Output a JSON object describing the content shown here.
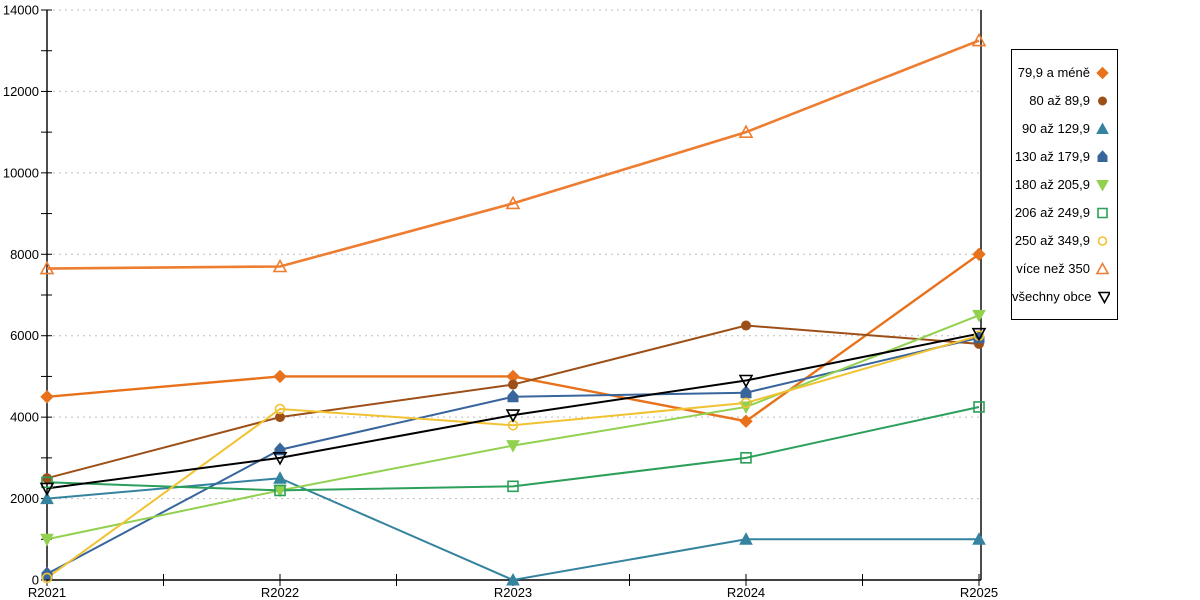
{
  "chart_data": {
    "type": "line",
    "title": "",
    "xlabel": "",
    "ylabel": "",
    "categories": [
      "R2021",
      "R2022",
      "R2023",
      "R2024",
      "R2025"
    ],
    "ylim": [
      0,
      14000
    ],
    "y_major_step": 2000,
    "y_minor_step": 1000,
    "y_tick_labels": [
      "0",
      "2000",
      "4000",
      "6000",
      "8000",
      "10000",
      "12000",
      "14000"
    ],
    "grid": "horizontal-dashed",
    "legend_position": "right-box",
    "series": [
      {
        "name": "79,9 a méně",
        "color": "#e8721c",
        "marker": "diamond",
        "marker_style": "filled",
        "line_width": 2.4,
        "values": [
          4500,
          5000,
          5000,
          3900,
          8000
        ]
      },
      {
        "name": "80 až 89,9",
        "color": "#9c5018",
        "marker": "circle",
        "marker_style": "filled",
        "line_width": 2,
        "values": [
          2500,
          4000,
          4800,
          6250,
          5800
        ]
      },
      {
        "name": "90 až 129,9",
        "color": "#35839e",
        "marker": "triangle-up",
        "marker_style": "filled",
        "line_width": 2,
        "values": [
          2000,
          2500,
          0,
          1000,
          1000
        ]
      },
      {
        "name": "130 až 179,9",
        "color": "#38659b",
        "marker": "pentagon",
        "marker_style": "filled",
        "line_width": 2,
        "values": [
          150,
          3200,
          4500,
          4600,
          5950
        ]
      },
      {
        "name": "180 až 205,9",
        "color": "#92d050",
        "marker": "triangle-down",
        "marker_style": "filled",
        "line_width": 2,
        "values": [
          1000,
          2200,
          3300,
          4250,
          6500
        ]
      },
      {
        "name": "206 až 249,9",
        "color": "#2ca05a",
        "marker": "square",
        "marker_style": "hollow",
        "line_width": 2,
        "values": [
          2400,
          2200,
          2300,
          3000,
          4250
        ]
      },
      {
        "name": "250 až 349,9",
        "color": "#f1c232",
        "marker": "circle",
        "marker_style": "hollow",
        "line_width": 2,
        "values": [
          50,
          4200,
          3800,
          4350,
          6000
        ]
      },
      {
        "name": "více než 350",
        "color": "#ed7d31",
        "marker": "triangle-up",
        "marker_style": "hollow",
        "line_width": 2.6,
        "values": [
          7650,
          7700,
          9250,
          11000,
          13250
        ]
      },
      {
        "name": "všechny obce",
        "color": "#000000",
        "marker": "triangle-down",
        "marker_style": "hollow",
        "line_width": 2,
        "values": [
          2250,
          3000,
          4050,
          4900,
          6050
        ]
      }
    ]
  },
  "colors": {
    "background": "#ffffff",
    "grid": "#bdbdbd",
    "axis": "#000000",
    "tick_label": "#000000",
    "legend_border": "#000000"
  }
}
